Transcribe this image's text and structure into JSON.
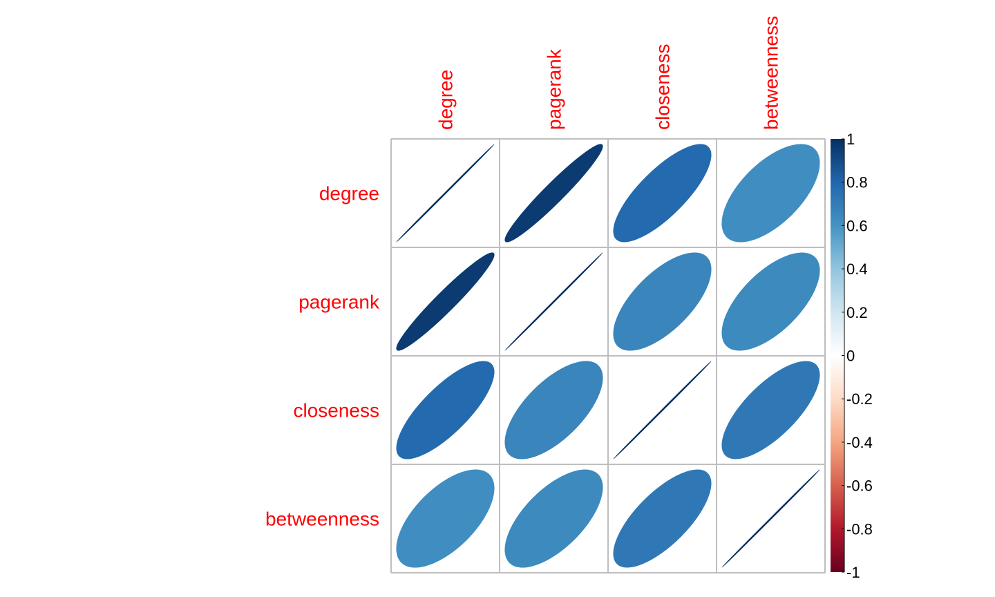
{
  "chart_data": {
    "type": "heatmap",
    "method": "ellipse",
    "row_labels": [
      "degree",
      "pagerank",
      "closeness",
      "betweenness"
    ],
    "column_labels": [
      "degree",
      "pagerank",
      "closeness",
      "betweenness"
    ],
    "matrix": [
      [
        1.0,
        0.96,
        0.78,
        0.62
      ],
      [
        0.96,
        1.0,
        0.66,
        0.64
      ],
      [
        0.78,
        0.66,
        1.0,
        0.72
      ],
      [
        0.62,
        0.64,
        0.72,
        1.0
      ]
    ],
    "label_color": "#ff0000",
    "grid_color": "#bebebe",
    "colorbar": {
      "range": [
        -1,
        1
      ],
      "ticks": [
        1,
        0.8,
        0.6,
        0.4,
        0.2,
        0,
        -0.2,
        -0.4,
        -0.6,
        -0.8,
        -1
      ],
      "tick_labels": [
        "1",
        "0.8",
        "0.6",
        "0.4",
        "0.2",
        "0",
        "-0.2",
        "-0.4",
        "-0.6",
        "-0.8",
        "-1"
      ],
      "placement": "right",
      "colors": [
        "#67001f",
        "#b2182b",
        "#d6604d",
        "#f4a582",
        "#fddbc7",
        "#ffffff",
        "#d1e5f0",
        "#92c5de",
        "#4393c3",
        "#2166ac",
        "#053061"
      ]
    }
  }
}
